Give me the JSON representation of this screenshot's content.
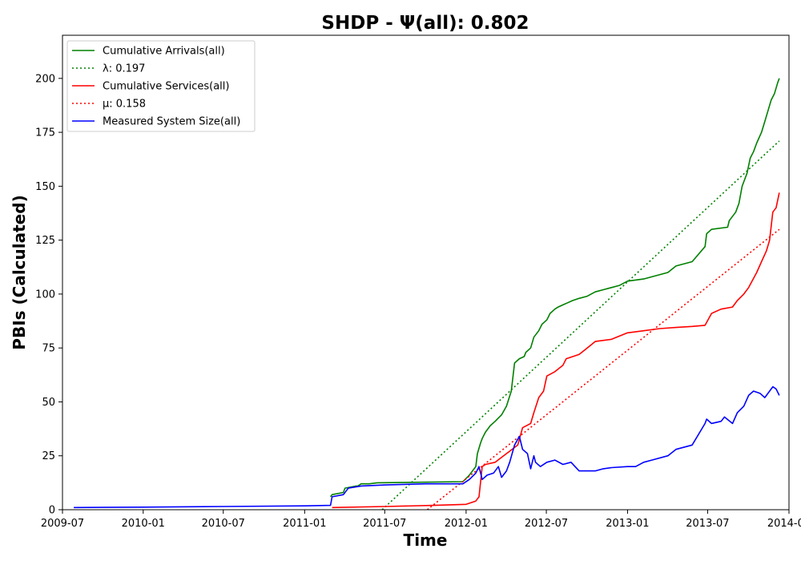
{
  "chart_data": {
    "type": "line",
    "title": "SHDP -  Ψ(all): 0.802",
    "xlabel": "Time",
    "ylabel": "PBIs (Calculated)",
    "xlim": [
      2009.5,
      2014.0
    ],
    "ylim": [
      0,
      220
    ],
    "x_ticks": [
      {
        "value": 2009.5,
        "label": "2009-07"
      },
      {
        "value": 2010.0,
        "label": "2010-01"
      },
      {
        "value": 2010.496,
        "label": "2010-07"
      },
      {
        "value": 2011.0,
        "label": "2011-01"
      },
      {
        "value": 2011.496,
        "label": "2011-07"
      },
      {
        "value": 2012.0,
        "label": "2012-01"
      },
      {
        "value": 2012.497,
        "label": "2012-07"
      },
      {
        "value": 2013.0,
        "label": "2013-01"
      },
      {
        "value": 2013.496,
        "label": "2013-07"
      },
      {
        "value": 2014.0,
        "label": "2014-01"
      }
    ],
    "y_ticks": [
      0,
      25,
      50,
      75,
      100,
      125,
      150,
      175,
      200
    ],
    "legend_position": "top-left",
    "series": [
      {
        "name": "Cumulative Arrivals(all)",
        "label": "Cumulative Arrivals(all)",
        "color": "#008000",
        "style": "solid",
        "x": [
          2011.16,
          2011.17,
          2011.24,
          2011.25,
          2011.32,
          2011.33,
          2011.35,
          2011.4,
          2011.45,
          2011.98,
          2012.02,
          2012.06,
          2012.07,
          2012.09,
          2012.1,
          2012.12,
          2012.15,
          2012.18,
          2012.22,
          2012.25,
          2012.28,
          2012.3,
          2012.33,
          2012.36,
          2012.37,
          2012.4,
          2012.42,
          2012.45,
          2012.47,
          2012.5,
          2012.52,
          2012.55,
          2012.57,
          2012.6,
          2012.63,
          2012.66,
          2012.7,
          2012.75,
          2012.8,
          2012.85,
          2012.9,
          2012.95,
          2013.0,
          2013.1,
          2013.15,
          2013.25,
          2013.3,
          2013.4,
          2013.48,
          2013.49,
          2013.52,
          2013.62,
          2013.63,
          2013.67,
          2013.69,
          2013.71,
          2013.74,
          2013.76,
          2013.78,
          2013.8,
          2013.83,
          2013.85,
          2013.87,
          2013.89,
          2013.91,
          2013.93,
          2013.94
        ],
        "values": [
          6,
          7,
          8,
          10,
          11,
          11,
          12,
          12,
          12.5,
          13,
          16,
          20,
          26,
          31,
          33,
          36,
          39,
          41,
          44,
          48,
          55,
          68,
          70,
          71,
          73,
          75,
          80,
          83,
          86,
          88,
          91,
          93,
          94,
          95,
          96,
          97,
          98,
          99,
          101,
          102,
          103,
          104,
          106,
          107,
          108,
          110,
          113,
          115,
          122,
          128,
          130,
          131,
          134,
          138,
          142,
          150,
          156,
          163,
          166,
          170,
          175,
          180,
          185,
          190,
          193,
          198,
          200
        ]
      },
      {
        "name": "λ: 0.197",
        "label": "λ: 0.197",
        "color": "#008000",
        "style": "dotted",
        "x": [
          2011.48,
          2013.94
        ],
        "values": [
          0,
          171
        ]
      },
      {
        "name": "Cumulative Services(all)",
        "label": "Cumulative Services(all)",
        "color": "#ff0000",
        "style": "solid",
        "x": [
          2011.17,
          2011.5,
          2011.8,
          2012.0,
          2012.06,
          2012.08,
          2012.1,
          2012.12,
          2012.18,
          2012.25,
          2012.32,
          2012.35,
          2012.4,
          2012.42,
          2012.45,
          2012.48,
          2012.5,
          2012.55,
          2012.6,
          2012.62,
          2012.7,
          2012.75,
          2012.8,
          2012.9,
          2013.0,
          2013.1,
          2013.2,
          2013.3,
          2013.4,
          2013.48,
          2013.52,
          2013.58,
          2013.65,
          2013.68,
          2013.72,
          2013.75,
          2013.8,
          2013.83,
          2013.86,
          2013.88,
          2013.9,
          2013.92,
          2013.94
        ],
        "values": [
          1,
          1.5,
          2,
          2.5,
          4,
          6,
          20,
          21,
          22,
          26,
          30,
          38,
          40,
          45,
          52,
          55,
          62,
          64,
          67,
          70,
          72,
          75,
          78,
          79,
          82,
          83,
          84,
          84.5,
          85,
          85.5,
          91,
          93,
          94,
          97,
          100,
          103,
          110,
          115,
          120,
          125,
          138,
          140,
          147
        ]
      },
      {
        "name": "μ: 0.158",
        "label": "μ: 0.158",
        "color": "#ff0000",
        "style": "dotted",
        "x": [
          2011.76,
          2013.94
        ],
        "values": [
          0,
          130
        ]
      },
      {
        "name": "Measured System Size(all)",
        "label": "Measured System Size(all)",
        "color": "#0000ff",
        "style": "solid",
        "x": [
          2009.57,
          2010.0,
          2010.5,
          2011.0,
          2011.16,
          2011.17,
          2011.24,
          2011.27,
          2011.35,
          2011.5,
          2011.75,
          2011.98,
          2012.02,
          2012.06,
          2012.08,
          2012.1,
          2012.13,
          2012.17,
          2012.2,
          2012.22,
          2012.25,
          2012.27,
          2012.3,
          2012.33,
          2012.35,
          2012.38,
          2012.4,
          2012.42,
          2012.43,
          2012.46,
          2012.5,
          2012.55,
          2012.6,
          2012.65,
          2012.7,
          2012.8,
          2012.85,
          2012.9,
          2013.0,
          2013.05,
          2013.1,
          2013.15,
          2013.25,
          2013.3,
          2013.4,
          2013.48,
          2013.49,
          2013.52,
          2013.58,
          2013.6,
          2013.65,
          2013.68,
          2013.72,
          2013.75,
          2013.78,
          2013.82,
          2013.85,
          2013.88,
          2013.9,
          2013.92,
          2013.94
        ],
        "values": [
          1,
          1.2,
          1.5,
          1.8,
          2,
          6,
          7,
          10,
          11,
          11.5,
          12,
          12,
          14,
          17,
          20,
          14,
          16,
          17,
          20,
          15,
          18,
          22,
          30,
          34,
          28,
          26,
          19,
          25,
          22,
          20,
          22,
          23,
          21,
          22,
          18,
          18,
          19,
          19.5,
          20,
          20,
          22,
          23,
          25,
          28,
          30,
          40,
          42,
          40,
          41,
          43,
          40,
          45,
          48,
          53,
          55,
          54,
          52,
          55,
          57,
          56,
          53
        ]
      }
    ]
  }
}
